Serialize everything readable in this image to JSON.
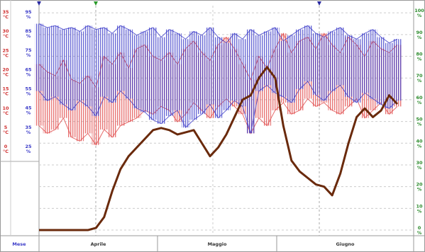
{
  "chart_data": {
    "type": "band-line",
    "months": [
      "Aprile",
      "Maggio",
      "Giugno"
    ],
    "month_label": "Mese",
    "y_unit": "°C",
    "y3_unit": "%",
    "y2_unit": "%",
    "ylim": [
      -22.6,
      37.2
    ],
    "yticks": [
      35,
      30,
      25,
      20,
      15,
      10,
      5,
      0
    ],
    "y3lim": [
      -20.3,
      99.4
    ],
    "y3ticks": [
      95,
      85,
      75,
      65,
      55,
      45,
      35,
      25
    ],
    "y2lim": [
      -2.6,
      103.3
    ],
    "y2ticks": [
      100,
      90,
      80,
      70,
      60,
      50,
      40,
      30,
      20,
      10,
      0
    ],
    "grid": true,
    "series": [
      {
        "color": "#e04848",
        "axis": "y",
        "high": [
          22,
          20,
          19,
          23,
          18,
          17,
          19,
          16,
          24,
          22,
          25,
          21,
          26,
          27,
          24,
          23,
          25,
          22,
          26,
          28,
          25,
          23,
          27,
          29,
          26,
          22,
          18,
          24,
          21,
          26,
          30,
          25,
          28,
          29,
          26,
          30,
          27,
          25,
          29,
          27,
          24,
          28,
          26,
          25,
          27
        ],
        "low": [
          6,
          4,
          5,
          8,
          3,
          2,
          4,
          1,
          5,
          3,
          6,
          7,
          8,
          10,
          9,
          11,
          10,
          7,
          9,
          12,
          10,
          8,
          11,
          13,
          11,
          9,
          4,
          8,
          6,
          10,
          12,
          9,
          10,
          13,
          11,
          12,
          10,
          9,
          11,
          13,
          8,
          10,
          12,
          9,
          11
        ]
      },
      {
        "color": "#3a3ac8",
        "axis": "y3",
        "high": [
          90,
          88,
          89,
          87,
          88,
          86,
          89,
          87,
          88,
          85,
          89,
          87,
          84,
          86,
          88,
          83,
          87,
          85,
          82,
          86,
          84,
          88,
          83,
          80,
          85,
          82,
          87,
          84,
          86,
          88,
          81,
          84,
          87,
          89,
          85,
          83,
          86,
          88,
          84,
          82,
          85,
          87,
          83,
          80,
          82
        ],
        "low": [
          55,
          50,
          52,
          48,
          45,
          50,
          47,
          42,
          52,
          49,
          55,
          51,
          46,
          44,
          40,
          38,
          42,
          45,
          36,
          40,
          43,
          48,
          41,
          45,
          50,
          47,
          33,
          55,
          58,
          54,
          52,
          49,
          56,
          60,
          53,
          50,
          55,
          58,
          52,
          49,
          54,
          51,
          48,
          46,
          50
        ]
      },
      {
        "color": "#6a2a0c",
        "axis": "y2",
        "values": [
          0,
          0,
          0,
          0,
          0,
          0,
          0,
          1,
          6,
          18,
          28,
          34,
          38,
          42,
          46,
          47,
          46,
          44,
          45,
          46,
          40,
          34,
          38,
          44,
          52,
          60,
          62,
          70,
          75,
          70,
          48,
          32,
          27,
          24,
          21,
          20,
          16,
          26,
          40,
          52,
          56,
          52,
          55,
          62,
          58
        ]
      }
    ]
  }
}
